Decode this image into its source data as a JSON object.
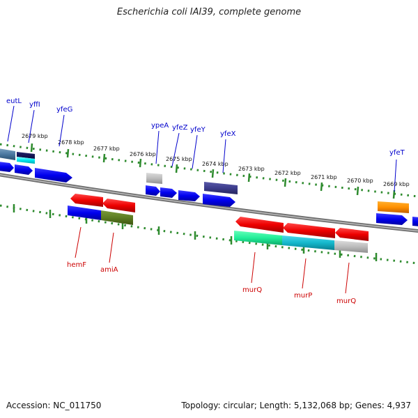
{
  "title": "Escherichia coli IAI39, complete genome",
  "footer": {
    "accession": "Accession: NC_011750",
    "stats": "Topology: circular; Length: 5,132,068 bp; Genes: 4,937"
  },
  "scale_labels": [
    "2679 kbp",
    "2678 kbp",
    "2677 kbp",
    "2676 kbp",
    "2675 kbp",
    "2674 kbp",
    "2673 kbp",
    "2672 kbp",
    "2671 kbp",
    "2670 kbp",
    "2669 kbp"
  ],
  "colors": {
    "backbone": "#7a7a7a",
    "tick": "#2e8b2e",
    "forward_label": "#0000cc",
    "reverse_label": "#cc0000"
  },
  "genes_forward": [
    "eutL",
    "yffI",
    "yfeG",
    "ypeA",
    "yfeZ",
    "yfeY",
    "yfeX",
    "yfeT"
  ],
  "genes_reverse": [
    "hemF",
    "amiA",
    "murQ",
    "murP",
    "murQ"
  ]
}
